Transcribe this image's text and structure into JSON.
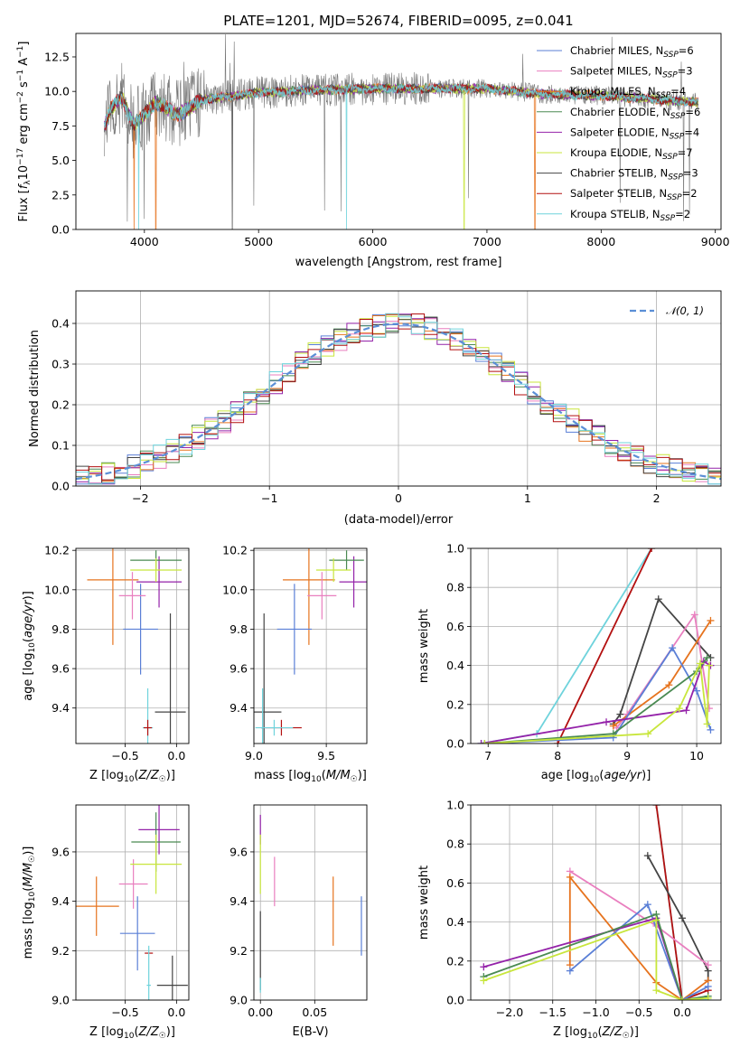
{
  "chart_data": [
    {
      "id": "spectrum",
      "type": "line",
      "title": "PLATE=1201, MJD=52674, FIBERID=0095, z=0.041",
      "xlabel": "wavelength [Angstrom, rest frame]",
      "ylabel": "Flux [f_λ 10^-17 erg cm^-2 s^-1 A^-1]",
      "xlim": [
        3400,
        9050
      ],
      "ylim": [
        0,
        14.2
      ],
      "xticks": [
        4000,
        5000,
        6000,
        7000,
        8000,
        9000
      ],
      "yticks": [
        0.0,
        2.5,
        5.0,
        7.5,
        10.0,
        12.5
      ],
      "grid": false,
      "legend_position": "top-right",
      "data_range": [
        3650,
        8850
      ],
      "continuum": {
        "x": [
          3650,
          3700,
          3800,
          3900,
          4000,
          4100,
          4300,
          4500,
          4800,
          5000,
          5500,
          6000,
          6500,
          7000,
          7500,
          8000,
          8500,
          8850
        ],
        "y": [
          7.4,
          8.7,
          9.6,
          7.6,
          8.3,
          9.2,
          8.3,
          9.4,
          9.7,
          9.9,
          10.1,
          10.2,
          10.2,
          10.2,
          9.8,
          9.7,
          9.4,
          9.2
        ]
      },
      "series": [
        {
          "name": "Chabrier MILES, N_SSP=6",
          "color": "#5a7fd6",
          "drop_x": null
        },
        {
          "name": "Salpeter MILES, N_SSP=3",
          "color": "#e97fbf",
          "drop_x": null
        },
        {
          "name": "Kroupa MILES, N_SSP=4",
          "color": "#e6731e",
          "drop_x": [
            3910,
            4100,
            7420
          ]
        },
        {
          "name": "Chabrier ELODIE, N_SSP=6",
          "color": "#4a8a52",
          "drop_x": null
        },
        {
          "name": "Salpeter ELODIE, N_SSP=4",
          "color": "#9422a9",
          "drop_x": null
        },
        {
          "name": "Kroupa ELODIE, N_SSP=7",
          "color": "#c8e63c",
          "drop_x": [
            6800
          ]
        },
        {
          "name": "Chabrier STELIB, N_SSP=3",
          "color": "#444444",
          "drop_x": [
            4770
          ]
        },
        {
          "name": "Salpeter STELIB, N_SSP=2",
          "color": "#b31010",
          "drop_x": null
        },
        {
          "name": "Kroupa STELIB, N_SSP=2",
          "color": "#6fd3dc",
          "drop_x": [
            3950,
            5770
          ]
        }
      ],
      "data_color": "#777777"
    },
    {
      "id": "residuals",
      "type": "line",
      "xlabel": "(data-model)/error",
      "ylabel": "Normed distribution",
      "xlim": [
        -2.5,
        2.5
      ],
      "ylim": [
        0,
        0.48
      ],
      "xticks": [
        -2,
        -1,
        0,
        1,
        2
      ],
      "yticks": [
        0.0,
        0.1,
        0.2,
        0.3,
        0.4
      ],
      "grid": true,
      "legend": "𝒩(0, 1)",
      "legend_position": "top-right",
      "reference_color": "#5b8fd6",
      "hist_colors": [
        "#5a7fd6",
        "#e97fbf",
        "#e6731e",
        "#4a8a52",
        "#9422a9",
        "#c8e63c",
        "#444444",
        "#b31010",
        "#6fd3dc"
      ]
    },
    {
      "id": "z-age",
      "type": "scatter",
      "xlabel": "Z [log10(Z/Z☉)]",
      "ylabel": "age [log10(age/yr)]",
      "xlim": [
        -0.98,
        0.12
      ],
      "ylim": [
        9.22,
        10.21
      ],
      "xticks": [
        -0.5,
        0.0
      ],
      "yticks": [
        9.4,
        9.6,
        9.8,
        10.0,
        10.2
      ],
      "grid": true,
      "points": [
        {
          "x": -0.62,
          "xerr": 0.25,
          "y": 10.05,
          "yerr": 0.33,
          "c": "#e6731e"
        },
        {
          "x": -0.35,
          "xerr": 0.17,
          "y": 9.8,
          "yerr": 0.23,
          "c": "#5a7fd6"
        },
        {
          "x": -0.43,
          "xerr": 0.13,
          "y": 9.97,
          "yerr": 0.12,
          "c": "#e97fbf"
        },
        {
          "x": -0.17,
          "xerr": 0.22,
          "y": 10.04,
          "yerr": 0.13,
          "c": "#9422a9"
        },
        {
          "x": -0.2,
          "xerr": 0.25,
          "y": 10.15,
          "yerr": 0.05,
          "c": "#4a8a52"
        },
        {
          "x": -0.2,
          "xerr": 0.25,
          "y": 10.1,
          "yerr": 0.06,
          "c": "#c8e63c"
        },
        {
          "x": -0.06,
          "xerr": 0.15,
          "y": 9.38,
          "yerr": 0.5,
          "c": "#444444"
        },
        {
          "x": -0.28,
          "xerr": 0.05,
          "y": 9.3,
          "yerr": 0.2,
          "c": "#6fd3dc"
        },
        {
          "x": -0.28,
          "xerr": 0.04,
          "y": 9.3,
          "yerr": 0.04,
          "c": "#b31010"
        }
      ]
    },
    {
      "id": "mass-age",
      "type": "scatter",
      "xlabel": "mass [log10(M/M☉)]",
      "ylabel": "",
      "xlim": [
        9.0,
        9.78
      ],
      "ylim": [
        9.22,
        10.21
      ],
      "xticks": [
        9.0,
        9.5
      ],
      "yticks": [
        9.4,
        9.6,
        9.8,
        10.0,
        10.2
      ],
      "grid": true,
      "points": [
        {
          "x": 9.38,
          "xerr": 0.18,
          "y": 10.05,
          "yerr": 0.33,
          "c": "#e6731e"
        },
        {
          "x": 9.28,
          "xerr": 0.12,
          "y": 9.8,
          "yerr": 0.23,
          "c": "#5a7fd6"
        },
        {
          "x": 9.47,
          "xerr": 0.1,
          "y": 9.97,
          "yerr": 0.12,
          "c": "#e97fbf"
        },
        {
          "x": 9.69,
          "xerr": 0.1,
          "y": 10.04,
          "yerr": 0.13,
          "c": "#9422a9"
        },
        {
          "x": 9.64,
          "xerr": 0.12,
          "y": 10.15,
          "yerr": 0.05,
          "c": "#4a8a52"
        },
        {
          "x": 9.55,
          "xerr": 0.12,
          "y": 10.1,
          "yerr": 0.06,
          "c": "#c8e63c"
        },
        {
          "x": 9.07,
          "xerr": 0.12,
          "y": 9.38,
          "yerr": 0.5,
          "c": "#444444"
        },
        {
          "x": 9.06,
          "xerr": 0.01,
          "y": 9.3,
          "yerr": 0.2,
          "c": "#6fd3dc"
        },
        {
          "x": 9.19,
          "xerr": 0.14,
          "y": 9.3,
          "yerr": 0.04,
          "c": "#b31010"
        },
        {
          "x": 9.14,
          "xerr": 0.13,
          "y": 9.3,
          "yerr": 0.04,
          "c": "#6fd3dc"
        }
      ]
    },
    {
      "id": "age-weight",
      "type": "line",
      "xlabel": "age [log10(age/yr)]",
      "ylabel": "mass weight",
      "xlim": [
        6.75,
        10.35
      ],
      "ylim": [
        0,
        1.0
      ],
      "xticks": [
        7,
        8,
        9,
        10
      ],
      "yticks": [
        0.0,
        0.2,
        0.4,
        0.6,
        0.8,
        1.0
      ],
      "grid": true,
      "series": [
        {
          "c": "#6fd3dc",
          "x": [
            6.9,
            7.7,
            9.35
          ],
          "y": [
            0.0,
            0.05,
            1.0
          ]
        },
        {
          "c": "#b31010",
          "x": [
            8.0,
            9.35
          ],
          "y": [
            0.0,
            1.0
          ]
        },
        {
          "c": "#444444",
          "x": [
            8.8,
            8.9,
            9.45,
            10.2
          ],
          "y": [
            0.1,
            0.15,
            0.74,
            0.44
          ]
        },
        {
          "c": "#e97fbf",
          "x": [
            8.85,
            9.0,
            9.97,
            10.18
          ],
          "y": [
            0.08,
            0.15,
            0.66,
            0.18
          ]
        },
        {
          "c": "#e6731e",
          "x": [
            8.8,
            9.6,
            10.2
          ],
          "y": [
            0.09,
            0.3,
            0.63
          ]
        },
        {
          "c": "#5a7fd6",
          "x": [
            6.95,
            8.8,
            9.65,
            10.0,
            10.2
          ],
          "y": [
            0.0,
            0.03,
            0.49,
            0.27,
            0.07
          ]
        },
        {
          "c": "#9422a9",
          "x": [
            6.9,
            8.7,
            9.85,
            10.1,
            10.2
          ],
          "y": [
            0.0,
            0.11,
            0.17,
            0.42,
            0.4
          ]
        },
        {
          "c": "#4a8a52",
          "x": [
            6.95,
            8.8,
            10.0,
            10.15
          ],
          "y": [
            0.0,
            0.05,
            0.37,
            0.44
          ]
        },
        {
          "c": "#c8e63c",
          "x": [
            6.95,
            9.3,
            9.75,
            10.05,
            10.15,
            10.18
          ],
          "y": [
            0.0,
            0.05,
            0.18,
            0.41,
            0.1,
            0.4
          ]
        }
      ]
    },
    {
      "id": "z-mass",
      "type": "scatter",
      "xlabel": "Z [log10(Z/Z☉)]",
      "ylabel": "mass [log10(M/M☉)]",
      "xlim": [
        -0.98,
        0.12
      ],
      "ylim": [
        9.0,
        9.79
      ],
      "xticks": [
        -0.5,
        0.0
      ],
      "yticks": [
        9.0,
        9.2,
        9.4,
        9.6
      ],
      "grid": true,
      "points": [
        {
          "x": -0.78,
          "xerr": 0.22,
          "y": 9.38,
          "yerr": 0.12,
          "c": "#e6731e"
        },
        {
          "x": -0.42,
          "xerr": 0.14,
          "y": 9.47,
          "yerr": 0.1,
          "c": "#e97fbf"
        },
        {
          "x": -0.17,
          "xerr": 0.2,
          "y": 9.69,
          "yerr": 0.1,
          "c": "#9422a9"
        },
        {
          "x": -0.2,
          "xerr": 0.24,
          "y": 9.64,
          "yerr": 0.12,
          "c": "#4a8a52"
        },
        {
          "x": -0.2,
          "xerr": 0.25,
          "y": 9.55,
          "yerr": 0.12,
          "c": "#c8e63c"
        },
        {
          "x": -0.38,
          "xerr": 0.17,
          "y": 9.27,
          "yerr": 0.15,
          "c": "#5a7fd6"
        },
        {
          "x": -0.04,
          "xerr": 0.15,
          "y": 9.06,
          "yerr": 0.12,
          "c": "#444444"
        },
        {
          "x": -0.27,
          "xerr": 0.04,
          "y": 9.19,
          "yerr": 0.0,
          "c": "#b31010"
        },
        {
          "x": -0.27,
          "xerr": 0.02,
          "y": 9.06,
          "yerr": 0.16,
          "c": "#6fd3dc"
        }
      ]
    },
    {
      "id": "ebv-mass",
      "type": "scatter",
      "xlabel": "E(B-V)",
      "ylabel": "",
      "xlim": [
        -0.006,
        0.098
      ],
      "ylim": [
        9.0,
        9.79
      ],
      "xticks": [
        0.0,
        0.05
      ],
      "yticklabels": [
        "9.0",
        "9.2",
        "9.4",
        "9.6"
      ],
      "yticks": [
        9.0,
        9.2,
        9.4,
        9.6
      ],
      "grid": true,
      "points": [
        {
          "x": 0.067,
          "y": 9.36,
          "yerr": 0.14,
          "c": "#e6731e"
        },
        {
          "x": 0.093,
          "y": 9.3,
          "yerr": 0.12,
          "c": "#5a7fd6"
        },
        {
          "x": 0.013,
          "y": 9.48,
          "yerr": 0.1,
          "c": "#e97fbf"
        },
        {
          "x": 0.0,
          "y": 9.69,
          "yerr": 0.06,
          "c": "#9422a9"
        },
        {
          "x": 0.0,
          "y": 9.55,
          "yerr": 0.12,
          "c": "#c8e63c"
        },
        {
          "x": 0.0,
          "y": 9.2,
          "yerr": 0.16,
          "c": "#444444"
        },
        {
          "x": 0.0,
          "y": 9.06,
          "yerr": 0.03,
          "c": "#6fd3dc"
        }
      ]
    },
    {
      "id": "z-weight",
      "type": "line",
      "xlabel": "Z [log10(Z/Z☉)]",
      "ylabel": "mass weight",
      "xlim": [
        -2.45,
        0.45
      ],
      "ylim": [
        0,
        1.0
      ],
      "xticks": [
        -2.0,
        -1.5,
        -1.0,
        -0.5,
        0.0
      ],
      "yticks": [
        0.0,
        0.2,
        0.4,
        0.6,
        0.8,
        1.0
      ],
      "grid": true,
      "series": [
        {
          "c": "#6fd3dc",
          "x": [
            -0.3,
            0.0,
            0.3
          ],
          "y": [
            1.0,
            0.0,
            0.0
          ]
        },
        {
          "c": "#b31010",
          "x": [
            -0.3,
            0.0,
            0.3
          ],
          "y": [
            1.0,
            0.0,
            0.05
          ]
        },
        {
          "c": "#444444",
          "x": [
            -0.4,
            0.0,
            0.3,
            0.3
          ],
          "y": [
            0.74,
            0.42,
            0.15,
            0.1
          ]
        },
        {
          "c": "#e97fbf",
          "x": [
            -1.3,
            -0.3,
            0.3
          ],
          "y": [
            0.66,
            0.38,
            0.18
          ]
        },
        {
          "c": "#e6731e",
          "x": [
            -1.3,
            -1.3,
            -0.3,
            0.0,
            0.3
          ],
          "y": [
            0.18,
            0.63,
            0.09,
            0.0,
            0.1
          ]
        },
        {
          "c": "#5a7fd6",
          "x": [
            -1.3,
            -0.4,
            0.0,
            0.3
          ],
          "y": [
            0.15,
            0.49,
            0.0,
            0.07
          ]
        },
        {
          "c": "#9422a9",
          "x": [
            -2.3,
            -0.3,
            0.0
          ],
          "y": [
            0.17,
            0.42,
            0.0
          ]
        },
        {
          "c": "#4a8a52",
          "x": [
            -2.3,
            -0.3,
            0.0,
            0.3
          ],
          "y": [
            0.12,
            0.44,
            0.0,
            0.02
          ]
        },
        {
          "c": "#c8e63c",
          "x": [
            -2.3,
            -0.3,
            -0.3,
            0.0,
            0.3
          ],
          "y": [
            0.1,
            0.41,
            0.05,
            0.0,
            0.01
          ]
        }
      ]
    }
  ]
}
